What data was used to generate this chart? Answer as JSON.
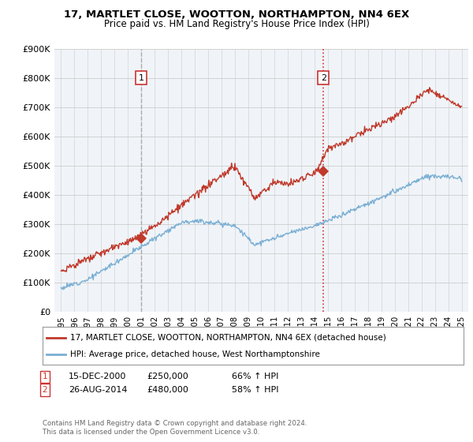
{
  "title": "17, MARTLET CLOSE, WOOTTON, NORTHAMPTON, NN4 6EX",
  "subtitle": "Price paid vs. HM Land Registry's House Price Index (HPI)",
  "ylim": [
    0,
    900000
  ],
  "yticks": [
    0,
    100000,
    200000,
    300000,
    400000,
    500000,
    600000,
    700000,
    800000,
    900000
  ],
  "ytick_labels": [
    "£0",
    "£100K",
    "£200K",
    "£300K",
    "£400K",
    "£500K",
    "£600K",
    "£700K",
    "£800K",
    "£900K"
  ],
  "hpi_color": "#7bafd4",
  "price_color": "#c0392b",
  "vline1_color": "#aaaaaa",
  "vline2_color": "#cc3333",
  "transaction1_date": 2001.0,
  "transaction1_price": 250000,
  "transaction1_label": "1",
  "transaction2_date": 2014.65,
  "transaction2_price": 480000,
  "transaction2_label": "2",
  "legend_entry1": "17, MARTLET CLOSE, WOOTTON, NORTHAMPTON, NN4 6EX (detached house)",
  "legend_entry2": "HPI: Average price, detached house, West Northamptonshire",
  "annotation1_date": "15-DEC-2000",
  "annotation1_price": "£250,000",
  "annotation1_hpi": "66% ↑ HPI",
  "annotation2_date": "26-AUG-2014",
  "annotation2_price": "£480,000",
  "annotation2_hpi": "58% ↑ HPI",
  "footer": "Contains HM Land Registry data © Crown copyright and database right 2024.\nThis data is licensed under the Open Government Licence v3.0.",
  "background_color": "#ffffff",
  "chart_bg_color": "#f0f4f8",
  "grid_color": "#cccccc",
  "box_color": "#cc3333"
}
